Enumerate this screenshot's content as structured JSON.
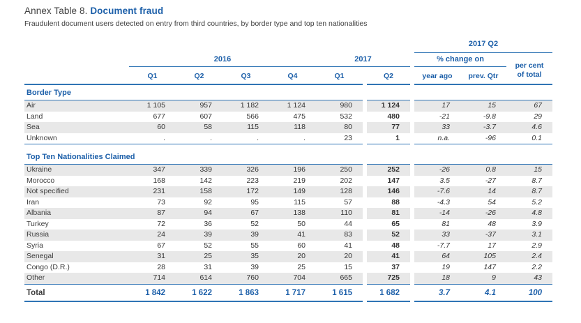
{
  "title": {
    "prefix": "Annex Table 8.",
    "highlight": "Document fraud"
  },
  "subtitle": "Fraudulent document users detected on entry from third countries, by border type and top ten nationalities",
  "header": {
    "group_2017q2": "2017 Q2",
    "group_2016": "2016",
    "group_2017": "2017",
    "group_pct_change": "% change on",
    "per_cent_line1": "per cent",
    "per_cent_line2": "of total",
    "quarters_2016": [
      "Q1",
      "Q2",
      "Q3",
      "Q4"
    ],
    "quarters_2017": [
      "Q1",
      "Q2"
    ],
    "change_cols": [
      "year ago",
      "prev. Qtr"
    ]
  },
  "sections": [
    {
      "title": "Border Type",
      "rows": [
        {
          "label": "Air",
          "values": [
            "1 105",
            "957",
            "1 182",
            "1 124",
            "980",
            "1 124",
            "17",
            "15",
            "67"
          ]
        },
        {
          "label": "Land",
          "values": [
            "677",
            "607",
            "566",
            "475",
            "532",
            "480",
            "-21",
            "-9.8",
            "29"
          ]
        },
        {
          "label": "Sea",
          "values": [
            "60",
            "58",
            "115",
            "118",
            "80",
            "77",
            "33",
            "-3.7",
            "4.6"
          ]
        },
        {
          "label": "Unknown",
          "values": [
            ".",
            ".",
            ".",
            ".",
            "23",
            "1",
            "n.a.",
            "-96",
            "0.1"
          ]
        }
      ]
    },
    {
      "title": "Top Ten Nationalities Claimed",
      "rows": [
        {
          "label": "Ukraine",
          "values": [
            "347",
            "339",
            "326",
            "196",
            "250",
            "252",
            "-26",
            "0.8",
            "15"
          ]
        },
        {
          "label": "Morocco",
          "values": [
            "168",
            "142",
            "223",
            "219",
            "202",
            "147",
            "3.5",
            "-27",
            "8.7"
          ]
        },
        {
          "label": "Not specified",
          "values": [
            "231",
            "158",
            "172",
            "149",
            "128",
            "146",
            "-7.6",
            "14",
            "8.7"
          ]
        },
        {
          "label": "Iran",
          "values": [
            "73",
            "92",
            "95",
            "115",
            "57",
            "88",
            "-4.3",
            "54",
            "5.2"
          ]
        },
        {
          "label": "Albania",
          "values": [
            "87",
            "94",
            "67",
            "138",
            "110",
            "81",
            "-14",
            "-26",
            "4.8"
          ]
        },
        {
          "label": "Turkey",
          "values": [
            "72",
            "36",
            "52",
            "50",
            "44",
            "65",
            "81",
            "48",
            "3.9"
          ]
        },
        {
          "label": "Russia",
          "values": [
            "24",
            "39",
            "39",
            "41",
            "83",
            "52",
            "33",
            "-37",
            "3.1"
          ]
        },
        {
          "label": "Syria",
          "values": [
            "67",
            "52",
            "55",
            "60",
            "41",
            "48",
            "-7.7",
            "17",
            "2.9"
          ]
        },
        {
          "label": "Senegal",
          "values": [
            "31",
            "25",
            "35",
            "20",
            "20",
            "41",
            "64",
            "105",
            "2.4"
          ]
        },
        {
          "label": "Congo (D.R.)",
          "values": [
            "28",
            "31",
            "39",
            "25",
            "15",
            "37",
            "19",
            "147",
            "2.2"
          ]
        },
        {
          "label": "Other",
          "values": [
            "714",
            "614",
            "760",
            "704",
            "665",
            "725",
            "18",
            "9",
            "43"
          ]
        }
      ]
    }
  ],
  "total": {
    "label": "Total",
    "values": [
      "1 842",
      "1 622",
      "1 863",
      "1 717",
      "1 615",
      "1 682",
      "3.7",
      "4.1",
      "100"
    ]
  },
  "colors": {
    "accent_blue": "#1c5fa9",
    "line_blue": "#2f74b5",
    "row_shade": "#e8e8e8",
    "body_text": "#333333"
  }
}
